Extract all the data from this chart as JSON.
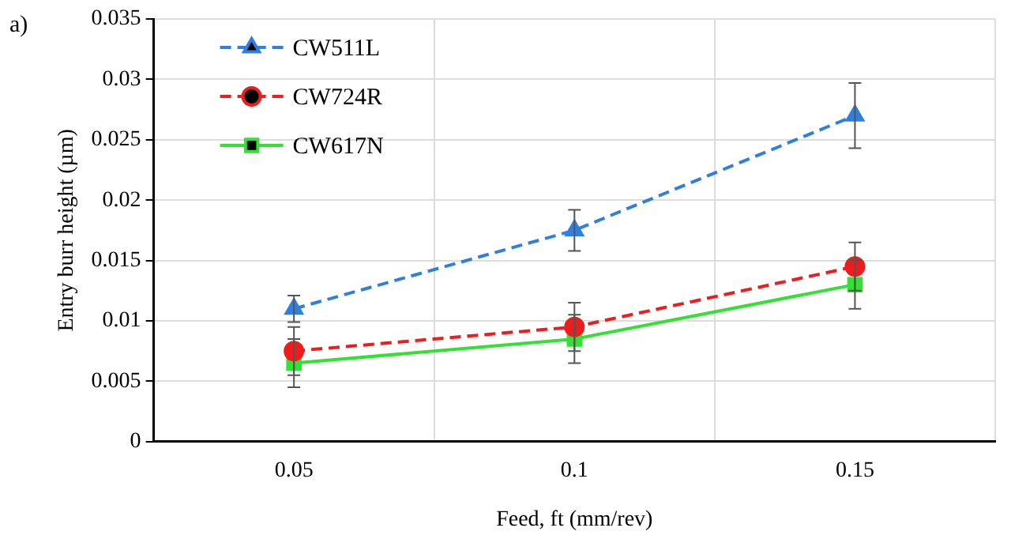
{
  "chart_data": {
    "type": "line",
    "xlabel": "Feed, ft (mm/rev)",
    "ylabel": "Entry burr height (µm)",
    "annotations": [
      "a)"
    ],
    "categories": [
      "0.05",
      "0.1",
      "0.15"
    ],
    "series": [
      {
        "name": "CW511L",
        "color": "#2f7fe0",
        "values": [
          0.011,
          0.0175,
          0.027
        ],
        "errors": [
          0.0011,
          0.0017,
          0.0027
        ],
        "marker": "triangle",
        "line_style": "dashed"
      },
      {
        "name": "CW724R",
        "color": "#ee1c1c",
        "values": [
          0.0075,
          0.0095,
          0.0145
        ],
        "errors": [
          0.002,
          0.002,
          0.002
        ],
        "marker": "circle",
        "line_style": "dashed"
      },
      {
        "name": "CW617N",
        "color": "#33e033",
        "values": [
          0.0065,
          0.0085,
          0.013
        ],
        "errors": [
          0.002,
          0.002,
          0.002
        ],
        "marker": "square",
        "line_style": "solid"
      }
    ],
    "ylim": [
      0,
      0.035
    ],
    "yticks": [
      0,
      0.005,
      0.01,
      0.015,
      0.02,
      0.025,
      0.03,
      0.035
    ],
    "grid": true,
    "legend": "top left"
  }
}
